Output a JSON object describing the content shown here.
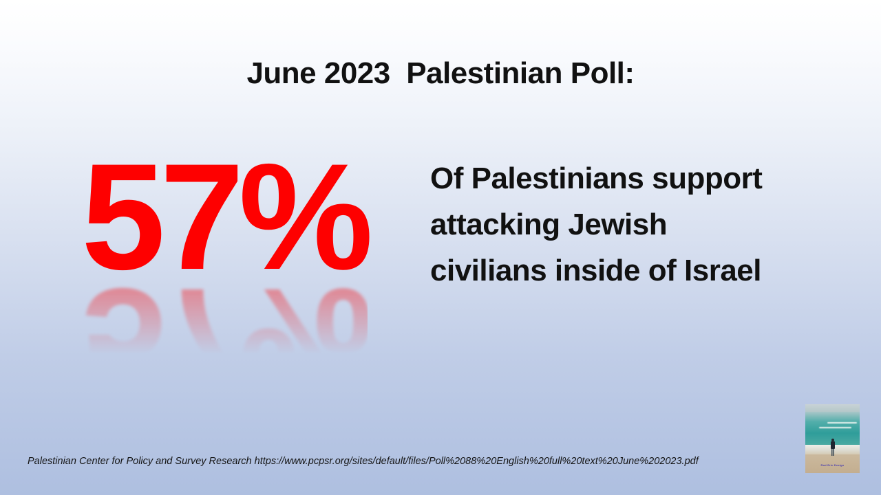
{
  "slide": {
    "title": "June 2023  Palestinian Poll:",
    "stat_value": "57%",
    "description_lines": [
      "Of Palestinians support",
      "attacking Jewish",
      "civilians inside of Israel"
    ],
    "source_citation": "Palestinian Center for Policy and Survey Research https://www.pcpsr.org/sites/default/files/Poll%2088%20English%20full%20text%20June%202023.pdf",
    "photo": {
      "subject": "person standing on beach facing ocean",
      "watermark": "Rod Eric Design"
    },
    "colors": {
      "stat_red": "#fe0000",
      "text_dark": "#111111",
      "background_top": "#ffffff",
      "background_bottom": "#aebfe0"
    }
  }
}
